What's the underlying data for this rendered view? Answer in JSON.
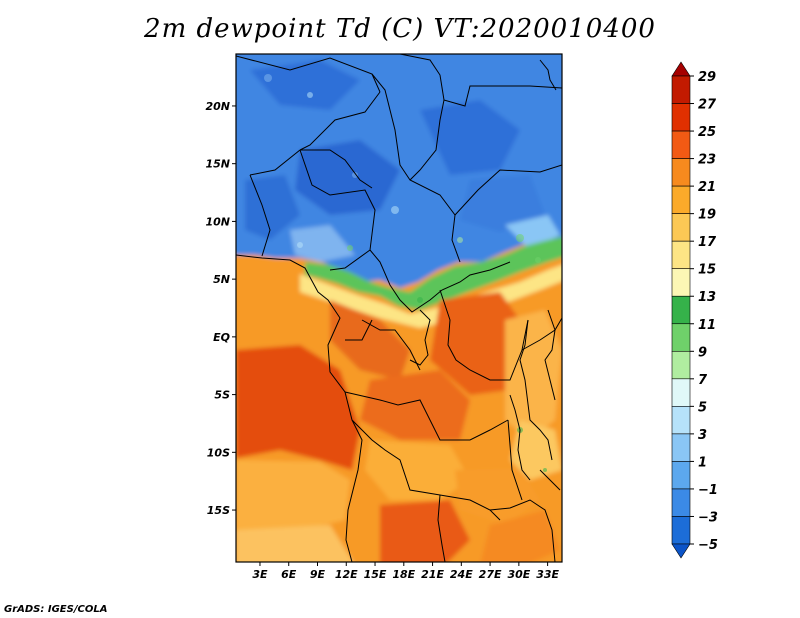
{
  "title": "2m dewpoint Td (C) VT:2020010400",
  "credit": "GrADS: IGES/COLA",
  "map": {
    "lat_labels": [
      "20N",
      "15N",
      "10N",
      "5N",
      "EQ",
      "5S",
      "10S",
      "15S"
    ],
    "lon_labels": [
      "3E",
      "6E",
      "9E",
      "12E",
      "15E",
      "18E",
      "21E",
      "24E",
      "27E",
      "30E",
      "33E"
    ],
    "lat_range": [
      -19.5,
      24.5
    ],
    "lon_range": [
      0.5,
      34.5
    ]
  },
  "legend": {
    "labels": [
      "29",
      "27",
      "25",
      "23",
      "21",
      "19",
      "17",
      "15",
      "13",
      "11",
      "9",
      "7",
      "5",
      "3",
      "1",
      "-1",
      "-3",
      "-5"
    ],
    "colors": [
      "#a50000",
      "#c21a00",
      "#e03000",
      "#f25a14",
      "#f78a1e",
      "#fbaa2a",
      "#fcc855",
      "#fde585",
      "#fcf7b5",
      "#35b24a",
      "#6fd16a",
      "#b0eda0",
      "#e0f8f8",
      "#b6e2fa",
      "#8ac6f5",
      "#5ca8ee",
      "#3b8ae6",
      "#1c6dd8",
      "#0b54c8"
    ]
  }
}
